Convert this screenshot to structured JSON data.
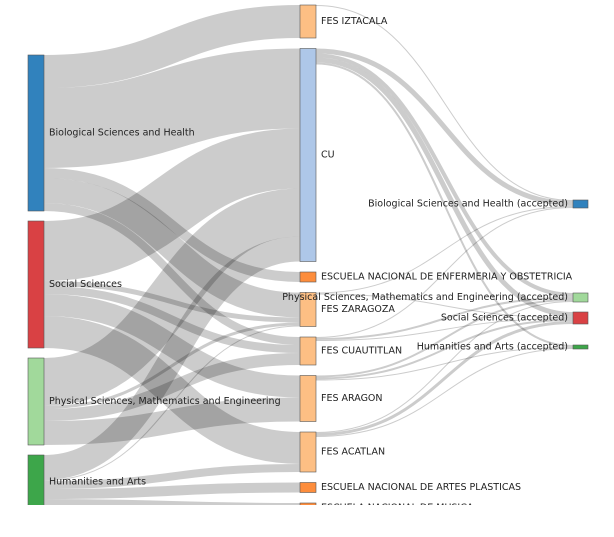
{
  "chart_data": {
    "type": "sankey",
    "nodes": [
      {
        "name": "Biological Sciences and Health",
        "color": "#3182bd"
      },
      {
        "name": "Social Sciences",
        "color": "#d94144"
      },
      {
        "name": "Physical Sciences, Mathematics and Engineering",
        "color": "#a1d99b"
      },
      {
        "name": "Humanities and Arts",
        "color": "#3da64a"
      },
      {
        "name": "FES IZTACALA",
        "color": "#fdbf84"
      },
      {
        "name": "CU",
        "color": "#aec7e8"
      },
      {
        "name": "ESCUELA NACIONAL DE ENFERMERIA Y OBSTETRICIA",
        "color": "#fd8d3c"
      },
      {
        "name": "FES ZARAGOZA",
        "color": "#fdbf84"
      },
      {
        "name": "FES CUAUTITLAN",
        "color": "#fdbf84"
      },
      {
        "name": "FES ARAGON",
        "color": "#fdbf84"
      },
      {
        "name": "FES ACATLAN",
        "color": "#fdbf84"
      },
      {
        "name": "ESCUELA NACIONAL DE ARTES PLASTICAS",
        "color": "#fd8d3c"
      },
      {
        "name": "ESCUELA NACIONAL DE MUSICA",
        "color": "#fd8d3c"
      },
      {
        "name": "Biological Sciences and Health (accepted)",
        "color": "#3182bd"
      },
      {
        "name": "Physical Sciences, Mathematics and Engineering (accepted)",
        "color": "#a1d99b"
      },
      {
        "name": "Social Sciences (accepted)",
        "color": "#d94144"
      },
      {
        "name": "Humanities and Arts (accepted)",
        "color": "#3da64a"
      }
    ],
    "links": [
      {
        "source": 0,
        "target": 4,
        "value": 33
      },
      {
        "source": 0,
        "target": 5,
        "value": 80
      },
      {
        "source": 0,
        "target": 6,
        "value": 10
      },
      {
        "source": 0,
        "target": 7,
        "value": 25
      },
      {
        "source": 0,
        "target": 8,
        "value": 8
      },
      {
        "source": 1,
        "target": 5,
        "value": 60
      },
      {
        "source": 1,
        "target": 7,
        "value": 5
      },
      {
        "source": 1,
        "target": 8,
        "value": 8
      },
      {
        "source": 1,
        "target": 9,
        "value": 22
      },
      {
        "source": 1,
        "target": 10,
        "value": 32
      },
      {
        "source": 2,
        "target": 5,
        "value": 48
      },
      {
        "source": 2,
        "target": 7,
        "value": 3
      },
      {
        "source": 2,
        "target": 8,
        "value": 12
      },
      {
        "source": 2,
        "target": 9,
        "value": 24
      },
      {
        "source": 3,
        "target": 5,
        "value": 25
      },
      {
        "source": 3,
        "target": 7,
        "value": 1
      },
      {
        "source": 3,
        "target": 10,
        "value": 8
      },
      {
        "source": 3,
        "target": 11,
        "value": 10
      },
      {
        "source": 3,
        "target": 12,
        "value": 10
      },
      {
        "source": 4,
        "target": 13,
        "value": 1
      },
      {
        "source": 5,
        "target": 13,
        "value": 5
      },
      {
        "source": 5,
        "target": 14,
        "value": 4
      },
      {
        "source": 5,
        "target": 15,
        "value": 5
      },
      {
        "source": 5,
        "target": 16,
        "value": 2
      },
      {
        "source": 7,
        "target": 13,
        "value": 1
      },
      {
        "source": 7,
        "target": 15,
        "value": 1
      },
      {
        "source": 8,
        "target": 13,
        "value": 1
      },
      {
        "source": 8,
        "target": 14,
        "value": 2
      },
      {
        "source": 8,
        "target": 15,
        "value": 1
      },
      {
        "source": 9,
        "target": 14,
        "value": 2
      },
      {
        "source": 9,
        "target": 15,
        "value": 2
      },
      {
        "source": 9,
        "target": 16,
        "value": 1
      },
      {
        "source": 10,
        "target": 14,
        "value": 1
      },
      {
        "source": 10,
        "target": 15,
        "value": 3
      },
      {
        "source": 10,
        "target": 16,
        "value": 1
      }
    ]
  }
}
